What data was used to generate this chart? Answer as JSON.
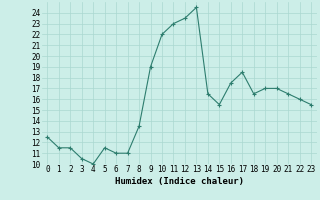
{
  "xlabel": "Humidex (Indice chaleur)",
  "x": [
    0,
    1,
    2,
    3,
    4,
    5,
    6,
    7,
    8,
    9,
    10,
    11,
    12,
    13,
    14,
    15,
    16,
    17,
    18,
    19,
    20,
    21,
    22,
    23
  ],
  "y": [
    12.5,
    11.5,
    11.5,
    10.5,
    10.0,
    11.5,
    11.0,
    11.0,
    13.5,
    19.0,
    22.0,
    23.0,
    23.5,
    24.5,
    16.5,
    15.5,
    17.5,
    18.5,
    16.5,
    17.0,
    17.0,
    16.5,
    16.0,
    15.5
  ],
  "line_color": "#2d7d6e",
  "marker": "+",
  "marker_size": 3,
  "marker_lw": 0.8,
  "line_width": 0.8,
  "bg_color": "#cceee8",
  "grid_color": "#aad8d0",
  "ylim": [
    10,
    25
  ],
  "xlim": [
    -0.5,
    23.5
  ],
  "yticks": [
    10,
    11,
    12,
    13,
    14,
    15,
    16,
    17,
    18,
    19,
    20,
    21,
    22,
    23,
    24
  ],
  "xticks": [
    0,
    1,
    2,
    3,
    4,
    5,
    6,
    7,
    8,
    9,
    10,
    11,
    12,
    13,
    14,
    15,
    16,
    17,
    18,
    19,
    20,
    21,
    22,
    23
  ],
  "tick_fontsize": 5.5,
  "xlabel_fontsize": 6.5
}
